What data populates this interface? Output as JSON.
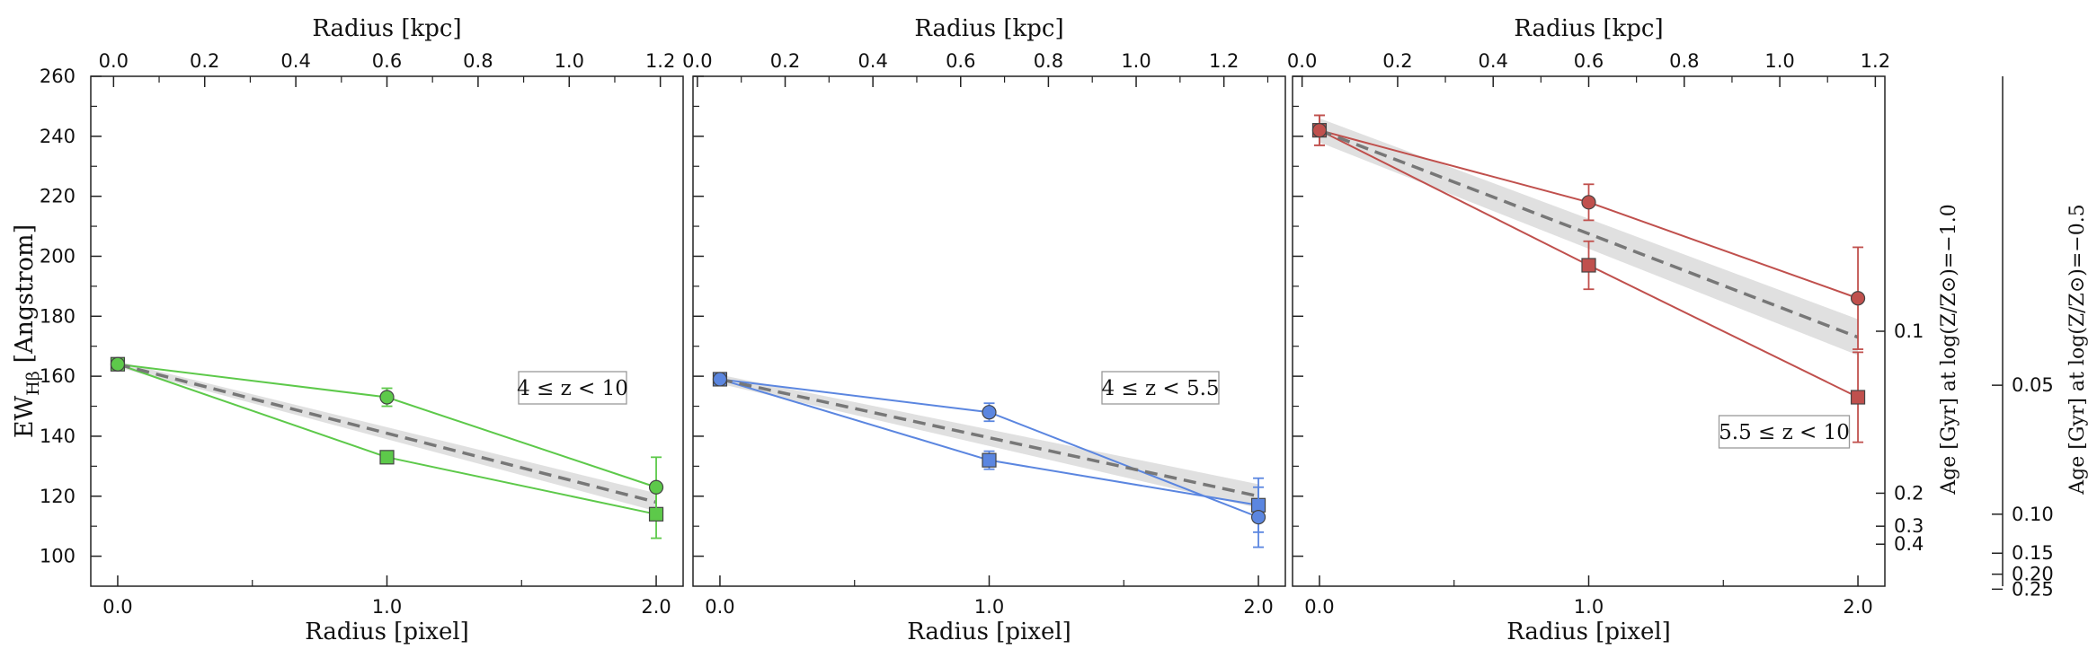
{
  "chart_data": [
    {
      "type": "line",
      "panel_label": "4 ≤ z < 10",
      "xlabel": "Radius [pixel]",
      "top_xlabel": "Radius [kpc]",
      "ylabel": "EW_Hβ [Angstrom]",
      "ylabel_main": "EW",
      "ylabel_sub": "Hβ",
      "ylabel_unit": "[Angstrom]",
      "xlim": [
        -0.1,
        2.1
      ],
      "ylim": [
        90,
        260
      ],
      "xticks": [
        "0.0",
        "1.0",
        "2.0"
      ],
      "yticks": [
        "100",
        "120",
        "140",
        "160",
        "180",
        "200",
        "220",
        "240",
        "260"
      ],
      "top_xlim": [
        -0.05,
        1.25
      ],
      "top_xticks": [
        "0.0",
        "0.2",
        "0.4",
        "0.6",
        "0.8",
        "1.0",
        "1.2"
      ],
      "color": "#5dc94a",
      "series": [
        {
          "name": "squares",
          "marker": "square",
          "x": [
            0,
            1,
            2
          ],
          "y": [
            164,
            133,
            114
          ],
          "yerr": [
            1,
            2,
            8
          ]
        },
        {
          "name": "circles",
          "marker": "circle",
          "x": [
            0,
            1,
            2
          ],
          "y": [
            164,
            153,
            123
          ],
          "yerr": [
            1,
            3,
            10
          ]
        }
      ],
      "fit": {
        "x": [
          0,
          2
        ],
        "y": [
          164,
          118
        ],
        "band_half_width": [
          1,
          3
        ]
      }
    },
    {
      "type": "line",
      "panel_label": "4 ≤ z < 5.5",
      "xlabel": "Radius [pixel]",
      "top_xlabel": "Radius [kpc]",
      "xlim": [
        -0.1,
        2.1
      ],
      "ylim": [
        90,
        260
      ],
      "xticks": [
        "0.0",
        "1.0",
        "2.0"
      ],
      "top_xlim": [
        -0.01,
        1.34
      ],
      "top_xticks": [
        "0.0",
        "0.2",
        "0.4",
        "0.6",
        "0.8",
        "1.0",
        "1.2"
      ],
      "color": "#5b86e0",
      "series": [
        {
          "name": "squares",
          "marker": "square",
          "x": [
            0,
            1,
            2
          ],
          "y": [
            159,
            132,
            117
          ],
          "yerr": [
            1,
            3,
            9
          ]
        },
        {
          "name": "circles",
          "marker": "circle",
          "x": [
            0,
            1,
            2
          ],
          "y": [
            159,
            148,
            113
          ],
          "yerr": [
            1,
            3,
            10
          ]
        }
      ],
      "fit": {
        "x": [
          0,
          2
        ],
        "y": [
          159,
          120
        ],
        "band_half_width": [
          1.5,
          4
        ]
      }
    },
    {
      "type": "line",
      "panel_label": "5.5 ≤ z < 10",
      "xlabel": "Radius [pixel]",
      "top_xlabel": "Radius [kpc]",
      "xlim": [
        -0.1,
        2.1
      ],
      "ylim": [
        90,
        260
      ],
      "xticks": [
        "0.0",
        "1.0",
        "2.0"
      ],
      "top_xlim": [
        -0.02,
        1.22
      ],
      "top_xticks": [
        "0.0",
        "0.2",
        "0.4",
        "0.6",
        "0.8",
        "1.0",
        "1.2"
      ],
      "color": "#c0504d",
      "series": [
        {
          "name": "squares",
          "marker": "square",
          "x": [
            0,
            1,
            2
          ],
          "y": [
            242,
            197,
            153
          ],
          "yerr": [
            5,
            8,
            15
          ]
        },
        {
          "name": "circles",
          "marker": "circle",
          "x": [
            0,
            1,
            2
          ],
          "y": [
            242,
            218,
            186
          ],
          "yerr": [
            5,
            6,
            17
          ]
        }
      ],
      "fit": {
        "x": [
          0,
          2
        ],
        "y": [
          242,
          173
        ],
        "band_half_width": [
          4,
          6
        ]
      },
      "right_axes": [
        {
          "label": "Age [Gyr] at log(Z/Z⊙)=−1.0",
          "ticks": [
            {
              "label": "0.1",
              "ew": 175
            },
            {
              "label": "0.2",
              "ew": 121
            },
            {
              "label": "0.3",
              "ew": 110
            },
            {
              "label": "0.4",
              "ew": 104
            }
          ]
        },
        {
          "label": "Age [Gyr] at log(Z/Z⊙)=−0.5",
          "ticks": [
            {
              "label": "0.05",
              "ew": 157
            },
            {
              "label": "0.10",
              "ew": 114
            },
            {
              "label": "0.15",
              "ew": 101
            },
            {
              "label": "0.20",
              "ew": 94
            },
            {
              "label": "0.25",
              "ew": 89
            }
          ]
        }
      ]
    }
  ]
}
